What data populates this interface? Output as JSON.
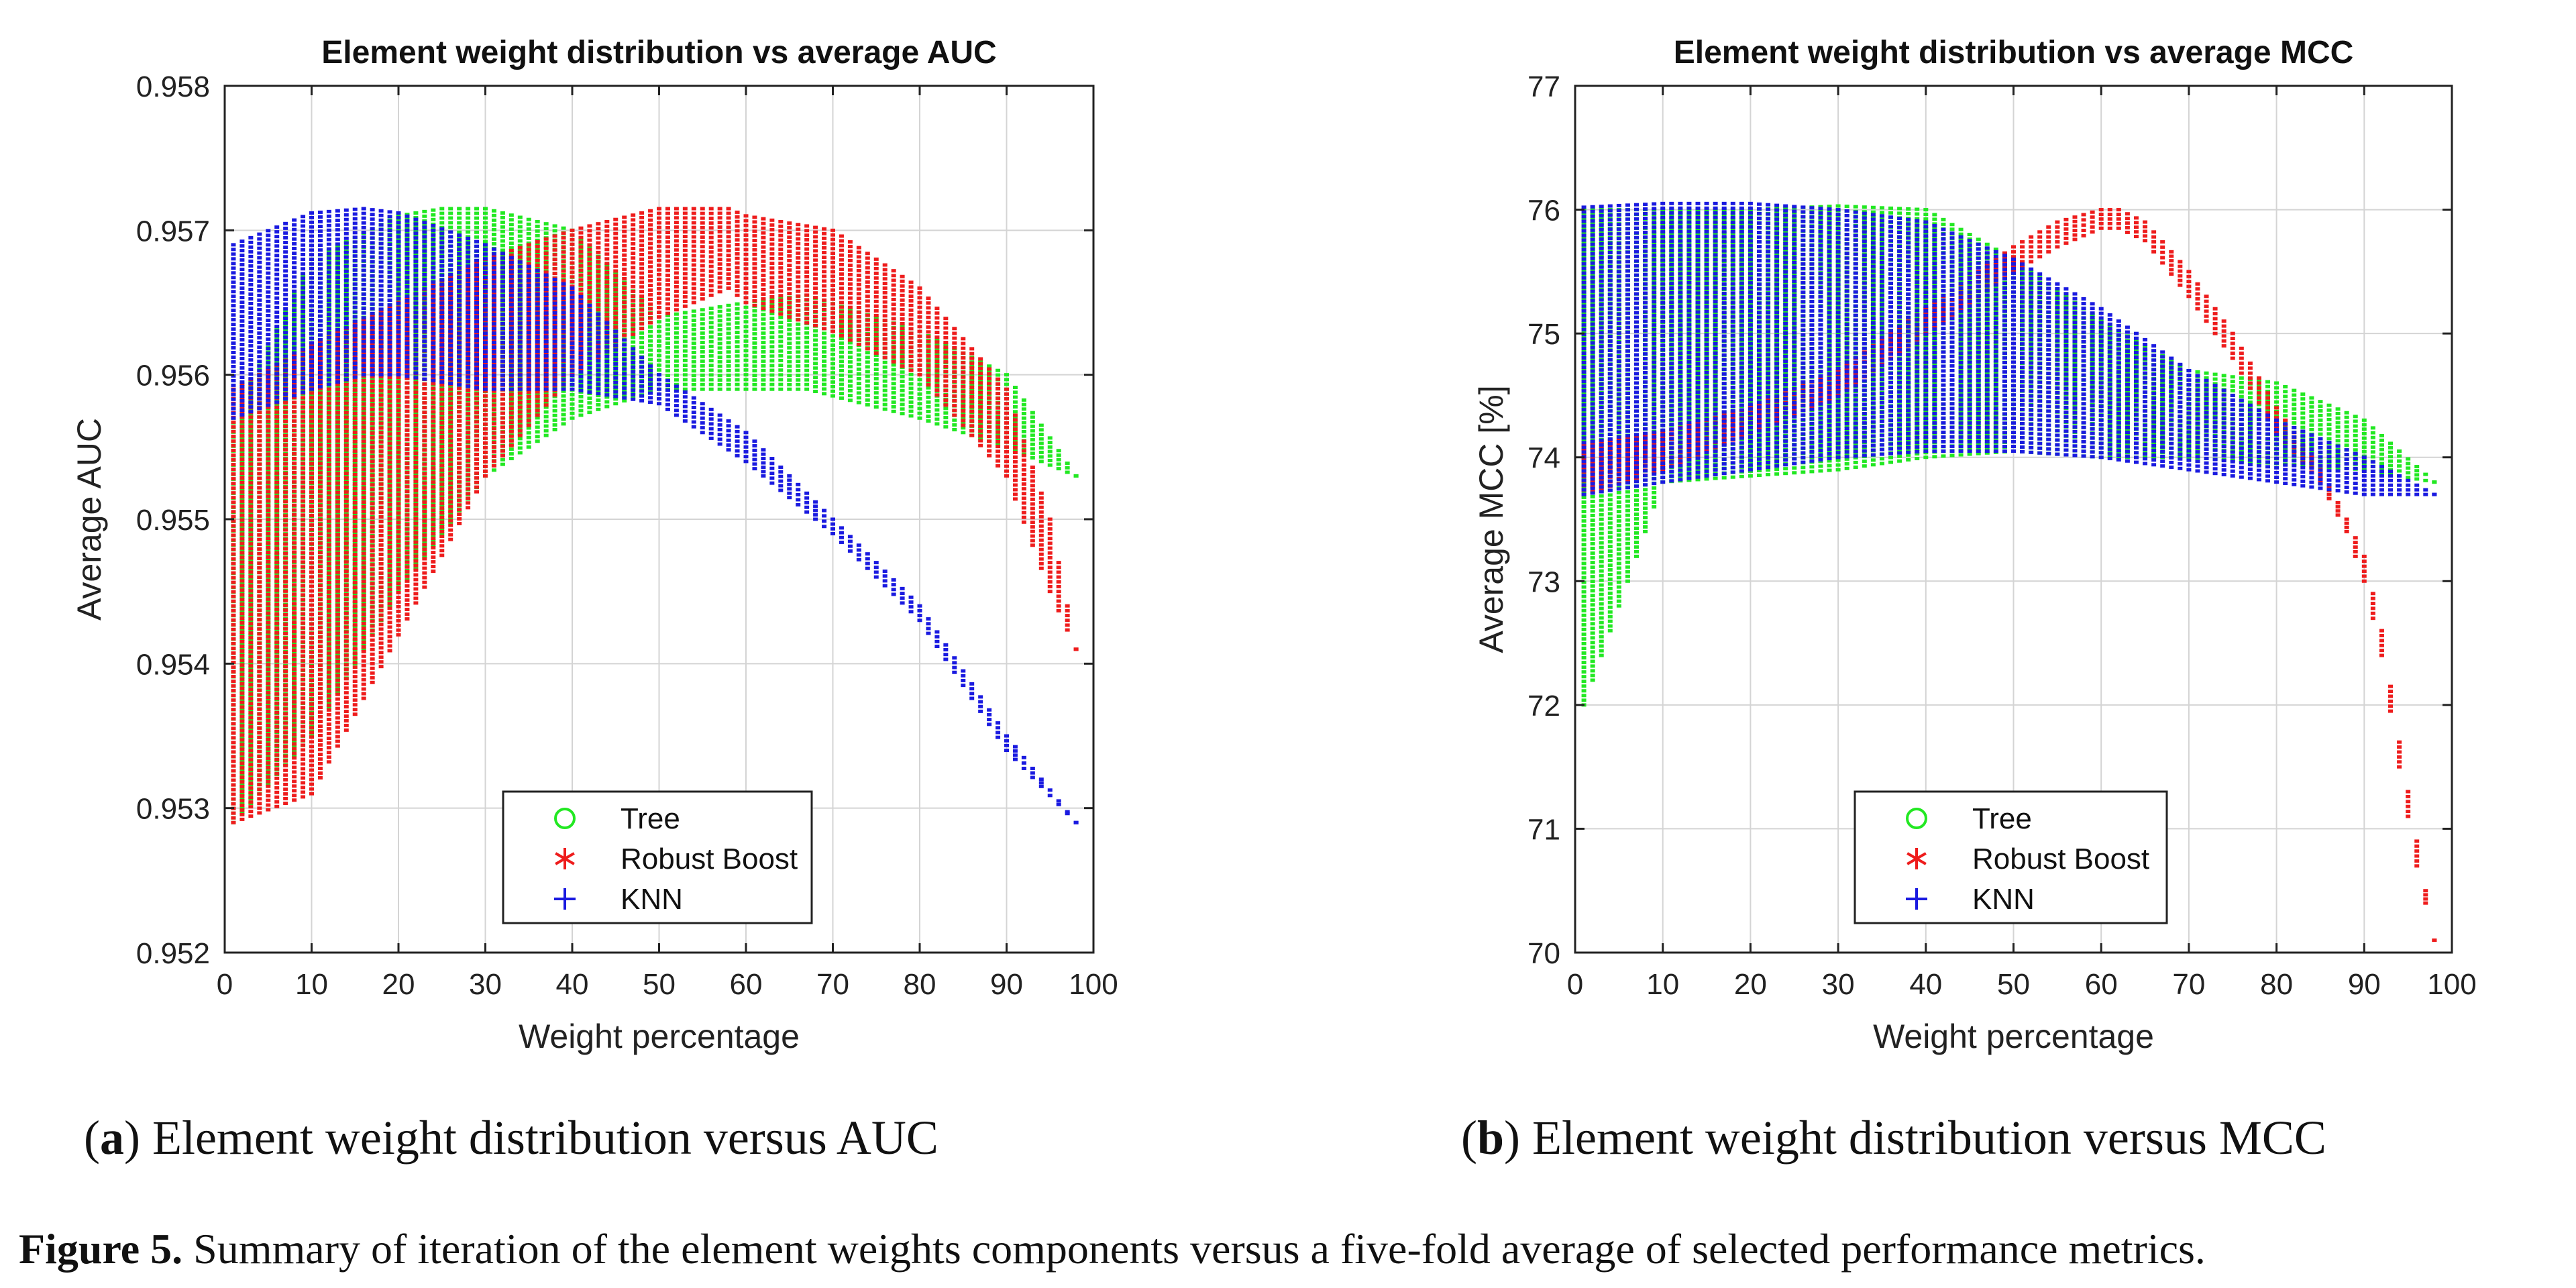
{
  "figure": {
    "caption_label": "Figure 5.",
    "caption_text": "Summary of iteration of the element weights components versus a five-fold average of selected performance metrics."
  },
  "subfigures": [
    {
      "letter": "a",
      "text": "Element weight distribution versus AUC"
    },
    {
      "letter": "b",
      "text": "Element weight distribution versus MCC"
    }
  ],
  "colors": {
    "Tree": "#22e822",
    "Robust Boost": "#ee1c1c",
    "KNN": "#1a1ae0"
  },
  "chart_data": [
    {
      "type": "scatter",
      "title": "Element weight distribution vs average AUC",
      "xlabel": "Weight percentage",
      "ylabel": "Average AUC",
      "xlim": [
        0,
        100
      ],
      "ylim": [
        0.952,
        0.958
      ],
      "xticks": [
        "0",
        "10",
        "20",
        "30",
        "40",
        "50",
        "60",
        "70",
        "80",
        "90",
        "100"
      ],
      "yticks": [
        "0.952",
        "0.953",
        "0.954",
        "0.955",
        "0.956",
        "0.957",
        "0.958"
      ],
      "grid": true,
      "legend_position": "bottom-center",
      "series": [
        {
          "name": "Tree",
          "marker": "o",
          "x": [
            1,
            10,
            20,
            25,
            30,
            40,
            50,
            60,
            67,
            80,
            90,
            98
          ],
          "y_upper": [
            0.9557,
            0.9568,
            0.9571,
            0.95715,
            0.95715,
            0.957,
            0.9564,
            0.9565,
            0.95655,
            0.9563,
            0.956,
            0.9553
          ],
          "y_lower": [
            0.9529,
            0.9535,
            0.9545,
            0.9549,
            0.9553,
            0.9557,
            0.9559,
            0.9559,
            0.9559,
            0.9557,
            0.9555,
            0.9553
          ]
        },
        {
          "name": "Robust Boost",
          "marker": "*",
          "x": [
            1,
            10,
            20,
            30,
            40,
            50,
            58,
            60,
            70,
            80,
            90,
            95,
            98
          ],
          "y_upper": [
            0.9559,
            0.9562,
            0.9565,
            0.9568,
            0.957,
            0.95715,
            0.95715,
            0.9571,
            0.957,
            0.9566,
            0.9559,
            0.955,
            0.9541
          ],
          "y_lower": [
            0.9529,
            0.9531,
            0.9542,
            0.9553,
            0.956,
            0.9564,
            0.9566,
            0.9565,
            0.9563,
            0.956,
            0.9553,
            0.9545,
            0.9541
          ]
        },
        {
          "name": "KNN",
          "marker": "+",
          "x": [
            1,
            10,
            16,
            20,
            30,
            40,
            50,
            60,
            70,
            80,
            90,
            98
          ],
          "y_upper": [
            0.9569,
            0.95712,
            0.95715,
            0.95712,
            0.9569,
            0.9566,
            0.956,
            0.9556,
            0.955,
            0.9544,
            0.9535,
            0.9529
          ],
          "y_lower": [
            0.9557,
            0.9559,
            0.956,
            0.956,
            0.9559,
            0.9559,
            0.9558,
            0.9554,
            0.9549,
            0.9543,
            0.9534,
            0.9529
          ]
        }
      ]
    },
    {
      "type": "scatter",
      "title": "Element weight distribution vs average MCC",
      "xlabel": "Weight percentage",
      "ylabel": "Average MCC [%]",
      "xlim": [
        0,
        100
      ],
      "ylim": [
        70,
        77
      ],
      "xticks": [
        "0",
        "10",
        "20",
        "30",
        "40",
        "50",
        "60",
        "70",
        "80",
        "90",
        "100"
      ],
      "yticks": [
        "70",
        "71",
        "72",
        "73",
        "74",
        "75",
        "76",
        "77"
      ],
      "grid": true,
      "legend_position": "bottom-center",
      "series": [
        {
          "name": "Tree",
          "marker": "o",
          "x": [
            1,
            10,
            20,
            30,
            40,
            50,
            60,
            70,
            80,
            90,
            98
          ],
          "y_upper": [
            76.0,
            76.0,
            76.0,
            76.03,
            76.0,
            75.6,
            75.1,
            74.7,
            74.6,
            74.3,
            73.8
          ],
          "y_lower": [
            72.0,
            73.8,
            73.85,
            73.9,
            74.0,
            74.05,
            74.0,
            74.0,
            73.95,
            73.9,
            73.8
          ]
        },
        {
          "name": "Robust Boost",
          "marker": "*",
          "x": [
            1,
            10,
            20,
            30,
            40,
            50,
            55,
            60,
            62,
            65,
            70,
            75,
            80,
            85,
            88,
            90,
            92,
            94,
            96,
            98
          ],
          "y_upper": [
            74.1,
            74.2,
            74.4,
            74.7,
            75.2,
            75.7,
            75.9,
            76.0,
            76.0,
            75.9,
            75.5,
            75.0,
            74.4,
            73.9,
            73.5,
            73.2,
            72.6,
            71.7,
            70.9,
            70.1
          ],
          "y_lower": [
            73.7,
            73.9,
            74.2,
            74.5,
            75.0,
            75.5,
            75.7,
            75.85,
            75.85,
            75.75,
            75.3,
            74.8,
            74.2,
            73.8,
            73.4,
            73.0,
            72.4,
            71.5,
            70.7,
            70.1
          ]
        },
        {
          "name": "KNN",
          "marker": "+",
          "x": [
            1,
            10,
            20,
            30,
            40,
            50,
            60,
            70,
            80,
            90,
            98
          ],
          "y_upper": [
            76.02,
            76.05,
            76.05,
            76.0,
            75.9,
            75.6,
            75.2,
            74.7,
            74.3,
            74.0,
            73.7
          ],
          "y_lower": [
            73.7,
            73.8,
            73.9,
            74.0,
            74.05,
            74.05,
            74.0,
            73.9,
            73.8,
            73.7,
            73.7
          ]
        }
      ]
    }
  ]
}
